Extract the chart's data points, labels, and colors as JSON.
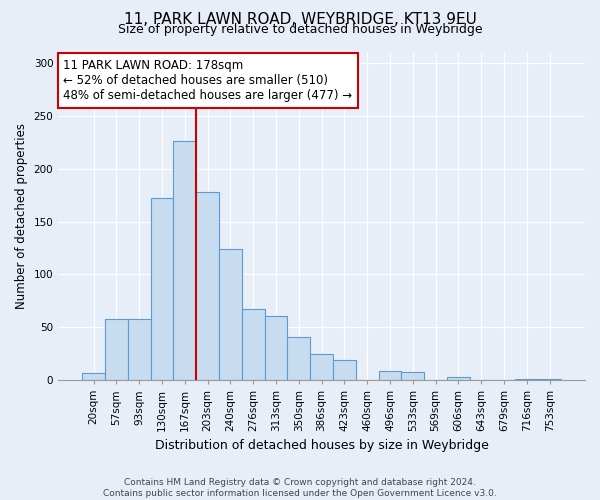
{
  "title": "11, PARK LAWN ROAD, WEYBRIDGE, KT13 9EU",
  "subtitle": "Size of property relative to detached houses in Weybridge",
  "xlabel": "Distribution of detached houses by size in Weybridge",
  "ylabel": "Number of detached properties",
  "bar_labels": [
    "20sqm",
    "57sqm",
    "93sqm",
    "130sqm",
    "167sqm",
    "203sqm",
    "240sqm",
    "276sqm",
    "313sqm",
    "350sqm",
    "386sqm",
    "423sqm",
    "460sqm",
    "496sqm",
    "533sqm",
    "569sqm",
    "606sqm",
    "643sqm",
    "679sqm",
    "716sqm",
    "753sqm"
  ],
  "bar_values": [
    7,
    58,
    58,
    172,
    226,
    178,
    124,
    67,
    61,
    41,
    25,
    19,
    0,
    9,
    8,
    0,
    3,
    0,
    0,
    1,
    1
  ],
  "bar_color": "#c8dcf0",
  "bar_edge_color": "#5b9bd5",
  "vline_color": "#cc0000",
  "annotation_title": "11 PARK LAWN ROAD: 178sqm",
  "annotation_line1": "← 52% of detached houses are smaller (510)",
  "annotation_line2": "48% of semi-detached houses are larger (477) →",
  "annotation_box_color": "#ffffff",
  "annotation_box_edge": "#cc0000",
  "ylim": [
    0,
    310
  ],
  "yticks": [
    0,
    50,
    100,
    150,
    200,
    250,
    300
  ],
  "footer1": "Contains HM Land Registry data © Crown copyright and database right 2024.",
  "footer2": "Contains public sector information licensed under the Open Government Licence v3.0.",
  "bg_color": "#e8eef8",
  "grid_color": "#ffffff",
  "title_fontsize": 11,
  "subtitle_fontsize": 9,
  "ylabel_fontsize": 8.5,
  "xlabel_fontsize": 9,
  "tick_fontsize": 7.5,
  "ann_fontsize": 8.5,
  "footer_fontsize": 6.5
}
